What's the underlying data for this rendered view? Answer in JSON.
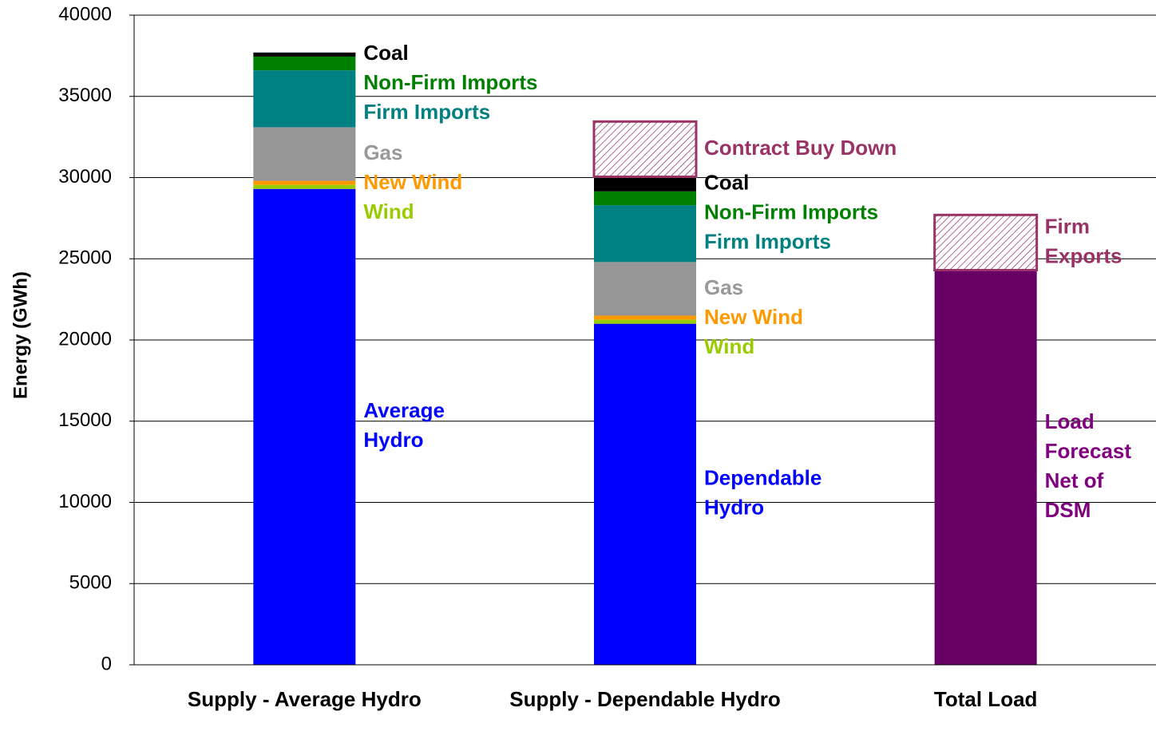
{
  "chart_data": {
    "type": "stacked_bar",
    "y_label": "Energy (GWh)",
    "categories": [
      "Supply - Average Hydro",
      "Supply - Dependable Hydro",
      "Total Load"
    ],
    "ylim": [
      0,
      40000
    ],
    "yticks": [
      0,
      5000,
      10000,
      15000,
      20000,
      25000,
      30000,
      35000,
      40000
    ],
    "grid": true,
    "series": [
      {
        "color": "#0000ff",
        "label_color": "#0000ff",
        "values": [
          29300,
          21000,
          null
        ],
        "labels": [
          [
            "Average",
            "Hydro"
          ],
          [
            "Dependable",
            "Hydro"
          ],
          null
        ]
      },
      {
        "color": "#99cc00",
        "label_color": "#99cc00",
        "values": [
          250,
          250,
          null
        ],
        "labels": [
          [
            "Wind"
          ],
          [
            "Wind"
          ],
          null
        ]
      },
      {
        "color": "#ff9900",
        "label_color": "#ff9900",
        "values": [
          250,
          250,
          null
        ],
        "labels": [
          [
            "New Wind"
          ],
          [
            "New Wind"
          ],
          null
        ]
      },
      {
        "color": "#969696",
        "label_color": "#999999",
        "values": [
          3300,
          3300,
          null
        ],
        "labels": [
          [
            "Gas"
          ],
          [
            "Gas"
          ],
          null
        ]
      },
      {
        "color": "#008080",
        "label_color": "#008080",
        "values": [
          3500,
          3500,
          null
        ],
        "labels": [
          [
            "Firm Imports"
          ],
          [
            "Firm Imports"
          ],
          null
        ]
      },
      {
        "color": "#008000",
        "label_color": "#008000",
        "values": [
          850,
          850,
          null
        ],
        "labels": [
          [
            "Non-Firm Imports"
          ],
          [
            "Non-Firm Imports"
          ],
          null
        ]
      },
      {
        "color": "#000000",
        "label_color": "#000000",
        "values": [
          250,
          900,
          null
        ],
        "labels": [
          [
            "Coal"
          ],
          [
            "Coal"
          ],
          null
        ]
      },
      {
        "color": "#993366",
        "label_color": "#993366",
        "hatch": true,
        "values": [
          null,
          3400,
          null
        ],
        "labels": [
          null,
          [
            "Contract Buy Down"
          ],
          null
        ]
      },
      {
        "color": "#660066",
        "label_color": "#800080",
        "values": [
          null,
          null,
          24300
        ],
        "labels": [
          null,
          null,
          [
            "Load",
            "Forecast",
            "Net of",
            "DSM"
          ]
        ]
      },
      {
        "color": "#993366",
        "label_color": "#993366",
        "hatch": true,
        "values": [
          null,
          null,
          3400
        ],
        "labels": [
          null,
          null,
          [
            "Firm",
            "Exports"
          ]
        ]
      }
    ]
  }
}
